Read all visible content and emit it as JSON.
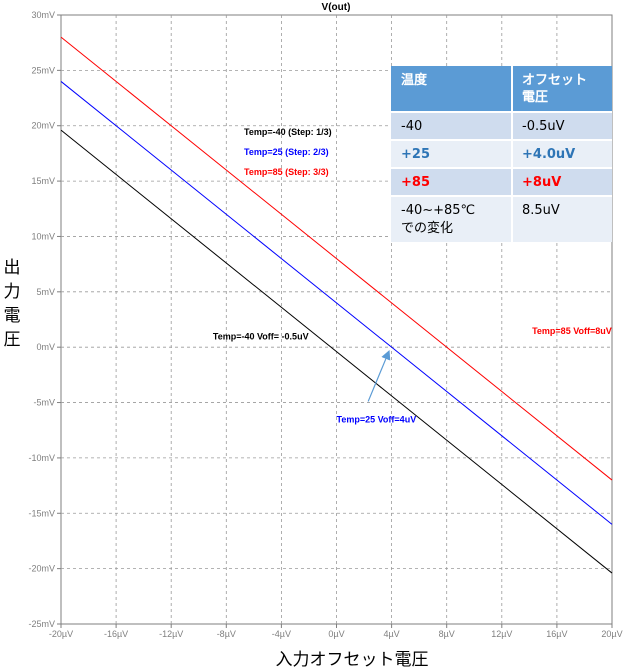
{
  "chart_data": {
    "type": "line",
    "title": "V(out)",
    "xlabel": "入力オフセット電圧",
    "ylabel": "出力電圧",
    "xlim": [
      -20,
      20
    ],
    "ylim": [
      -25,
      30
    ],
    "x_unit": "µV",
    "y_unit": "mV",
    "grid": true,
    "x_ticks": [
      "-20µV",
      "-16µV",
      "-12µV",
      "-8µV",
      "-4µV",
      "0µV",
      "4µV",
      "8µV",
      "12µV",
      "16µV",
      "20µV"
    ],
    "y_ticks": [
      "30mV",
      "25mV",
      "20mV",
      "15mV",
      "10mV",
      "5mV",
      "0mV",
      "-5mV",
      "-10mV",
      "-15mV",
      "-20mV",
      "-25mV"
    ],
    "series": [
      {
        "name": "Temp=-40 (Step: 1/3)",
        "color": "#000000",
        "x": [
          -20,
          20
        ],
        "y": [
          19.6,
          -20.4
        ]
      },
      {
        "name": "Temp=25 (Step: 2/3)",
        "color": "#0000ff",
        "x": [
          -20,
          20
        ],
        "y": [
          24.0,
          -16.0
        ]
      },
      {
        "name": "Temp=85 (Step: 3/3)",
        "color": "#ff0000",
        "x": [
          -20,
          20
        ],
        "y": [
          28.0,
          -12.0
        ]
      }
    ],
    "legend": {
      "placement": "top-center",
      "entries": [
        {
          "text": "Temp=-40  (Step: 1/3)",
          "color": "#000000"
        },
        {
          "text": "Temp=25  (Step: 2/3)",
          "color": "#0000ff"
        },
        {
          "text": "Temp=85  (Step: 3/3)",
          "color": "#ff0000"
        }
      ]
    },
    "annotations": [
      {
        "text": "Temp=-40 Voff= -0.5uV",
        "color": "#000000",
        "at": [
          -5.5,
          0.7
        ]
      },
      {
        "text": "Temp=85 Voff=8uV",
        "color": "#ff0000",
        "at": [
          14.2,
          1.2
        ]
      },
      {
        "text": "Temp=25 Voff=4uV",
        "color": "#0000ff",
        "at": [
          0.0,
          -6.8
        ],
        "arrow_to": [
          4.0,
          0.0
        ]
      }
    ],
    "table": {
      "header": [
        "温度",
        "オフセット\n電圧"
      ],
      "rows": [
        {
          "cells": [
            "-40",
            "-0.5uV"
          ],
          "color": "#000000"
        },
        {
          "cells": [
            "+25",
            "+4.0uV"
          ],
          "color": "#2e75b6"
        },
        {
          "cells": [
            "+85",
            "+8uV"
          ],
          "color": "#ff0000"
        },
        {
          "cells": [
            "-40~+85℃\nでの変化",
            "8.5uV"
          ],
          "color": "#000000"
        }
      ],
      "header_color": "#5b9bd5",
      "row_colors": [
        "#cfdcee",
        "#e9eff7"
      ]
    }
  }
}
